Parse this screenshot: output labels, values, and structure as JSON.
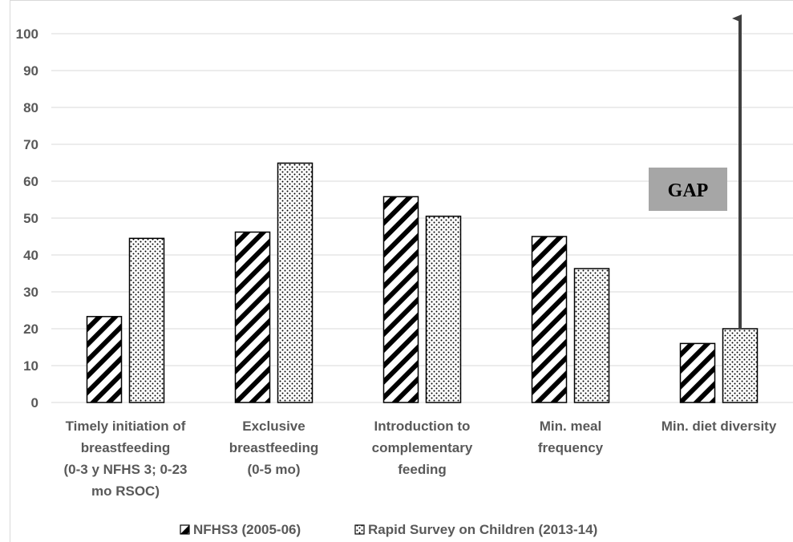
{
  "chart_data": {
    "type": "bar",
    "categories": [
      [
        "Timely initiation of",
        "breastfeeding",
        "(0-3 y NFHS 3; 0-23",
        "mo RSOC)"
      ],
      [
        "Exclusive",
        "breastfeeding",
        "(0-5 mo)"
      ],
      [
        "Introduction to",
        "complementary",
        "feeding"
      ],
      [
        "Min. meal",
        "frequency"
      ],
      [
        "Min. diet diversity"
      ]
    ],
    "series": [
      {
        "name": "NFHS3 (2005-06)",
        "pattern": "diagonal-stripes",
        "values": [
          23.3,
          46.2,
          55.8,
          45.0,
          16.0
        ]
      },
      {
        "name": "Rapid Survey on Children (2013-14)",
        "pattern": "dots",
        "values": [
          44.5,
          64.9,
          50.5,
          36.3,
          20.0
        ]
      }
    ],
    "ylim": [
      0,
      100
    ],
    "yticks": [
      0,
      10,
      20,
      30,
      40,
      50,
      60,
      70,
      80,
      90,
      100
    ],
    "grid": true,
    "legend_position": "bottom",
    "annotation": {
      "text": "GAP",
      "arrow_from": 20,
      "arrow_to": 105,
      "category_index": 4
    },
    "colors": {
      "bar_stroke": "#000000",
      "grid": "#d9d9d9",
      "text": "#595959",
      "gap_box": "#a6a6a6",
      "arrow": "#404040"
    }
  }
}
